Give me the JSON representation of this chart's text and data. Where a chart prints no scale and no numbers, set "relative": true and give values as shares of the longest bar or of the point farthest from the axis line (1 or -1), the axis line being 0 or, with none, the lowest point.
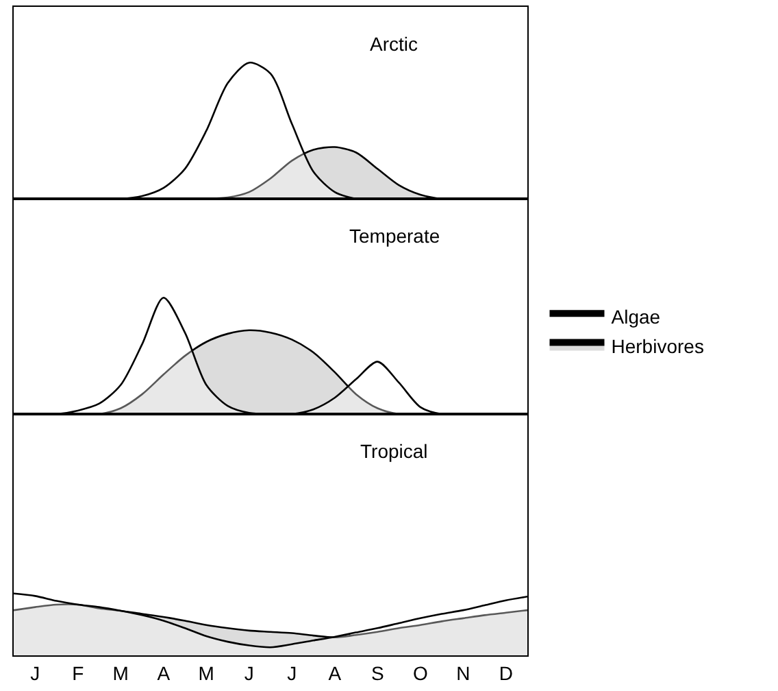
{
  "chart_data": [
    {
      "type": "area",
      "title": "Arctic",
      "relative": true,
      "categories": [
        null,
        "J",
        null,
        "F",
        null,
        "M",
        null,
        "A",
        null,
        "M",
        null,
        "J",
        null,
        "J",
        null,
        "A",
        null,
        "S",
        null,
        "O",
        null,
        "N",
        null,
        "D",
        null
      ],
      "tick_labels": false,
      "grid": false,
      "legend": "right",
      "series": [
        {
          "name": "Herbivores",
          "color": "#dcdcdc",
          "values": [
            0,
            0,
            0,
            0,
            0,
            0,
            0,
            0,
            0,
            0,
            0.01,
            0.05,
            0.15,
            0.28,
            0.36,
            0.38,
            0.34,
            0.22,
            0.1,
            0.03,
            0,
            0,
            0,
            0,
            0
          ]
        },
        {
          "name": "Algae",
          "color": "#ffffff",
          "values": [
            0,
            0,
            0,
            0,
            0,
            0,
            0.02,
            0.08,
            0.22,
            0.5,
            0.85,
            1,
            0.92,
            0.55,
            0.2,
            0.05,
            0,
            0,
            0,
            0,
            0,
            0,
            0,
            0,
            0
          ]
        }
      ]
    },
    {
      "type": "area",
      "title": "Temperate",
      "relative": true,
      "categories": [
        null,
        "J",
        null,
        "F",
        null,
        "M",
        null,
        "A",
        null,
        "M",
        null,
        "J",
        null,
        "J",
        null,
        "A",
        null,
        "S",
        null,
        "O",
        null,
        "N",
        null,
        "D",
        null
      ],
      "tick_labels": false,
      "grid": false,
      "legend": "right",
      "series": [
        {
          "name": "Herbivores",
          "color": "#dcdcdc",
          "values": [
            0,
            0,
            0,
            0,
            0,
            0.05,
            0.17,
            0.34,
            0.5,
            0.62,
            0.69,
            0.72,
            0.7,
            0.64,
            0.53,
            0.36,
            0.17,
            0.05,
            0,
            0,
            0,
            0,
            0,
            0,
            0
          ]
        },
        {
          "name": "Algae",
          "color": "#ffffff",
          "values": [
            0,
            0,
            0,
            0.03,
            0.09,
            0.25,
            0.6,
            1,
            0.7,
            0.25,
            0.07,
            0.01,
            0,
            0,
            0.04,
            0.14,
            0.3,
            0.45,
            0.27,
            0.06,
            0,
            0,
            0,
            0,
            0
          ]
        }
      ]
    },
    {
      "type": "area",
      "title": "Tropical",
      "relative": true,
      "categories": [
        null,
        "J",
        null,
        "F",
        null,
        "M",
        null,
        "A",
        null,
        "M",
        null,
        "J",
        null,
        "J",
        null,
        "A",
        null,
        "S",
        null,
        "O",
        null,
        "N",
        null,
        "D",
        null
      ],
      "tick_labels": "x",
      "grid": false,
      "legend": "right",
      "series": [
        {
          "name": "Herbivores",
          "color": "#dcdcdc",
          "values": [
            0.73,
            0.78,
            0.82,
            0.82,
            0.76,
            0.72,
            0.67,
            0.62,
            0.56,
            0.49,
            0.44,
            0.4,
            0.38,
            0.36,
            0.32,
            0.29,
            0.33,
            0.38,
            0.44,
            0.49,
            0.55,
            0.6,
            0.65,
            0.69,
            0.73
          ]
        },
        {
          "name": "Algae",
          "color": "#ffffff",
          "values": [
            1,
            0.96,
            0.88,
            0.82,
            0.78,
            0.72,
            0.65,
            0.56,
            0.44,
            0.31,
            0.22,
            0.16,
            0.13,
            0.18,
            0.24,
            0.3,
            0.37,
            0.44,
            0.52,
            0.6,
            0.67,
            0.73,
            0.81,
            0.89,
            0.95
          ]
        }
      ]
    }
  ]
}
